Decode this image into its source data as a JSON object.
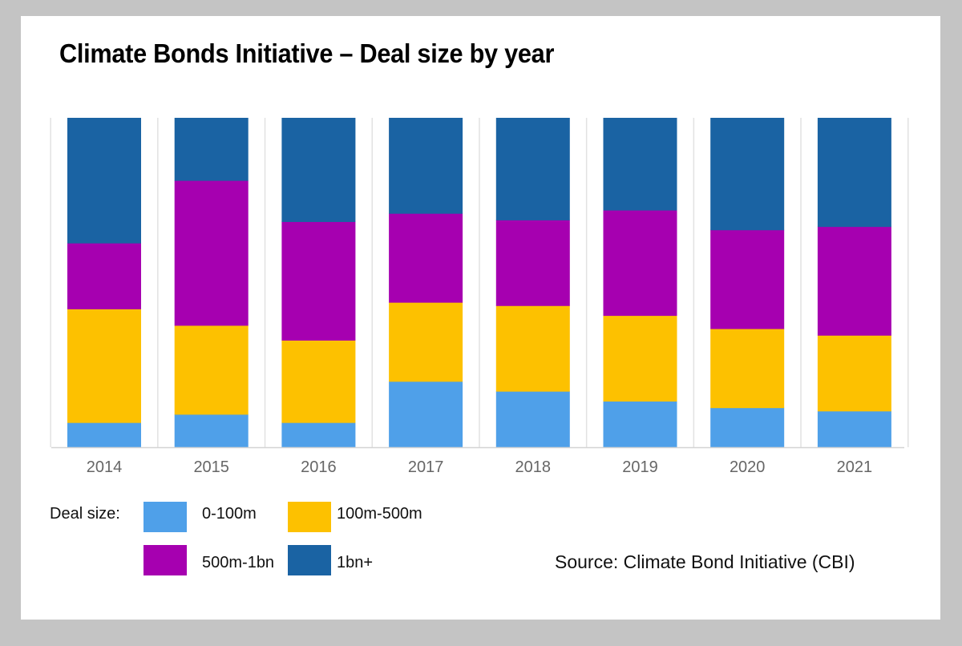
{
  "chart_data": {
    "type": "bar",
    "stacked": true,
    "normalized": true,
    "title": "Climate Bonds Initiative – Deal size by year",
    "categories": [
      "2014",
      "2015",
      "2016",
      "2017",
      "2018",
      "2019",
      "2020",
      "2021"
    ],
    "series": [
      {
        "name": "0-100m",
        "color": "#4fa0e9",
        "values": [
          7.5,
          10,
          7.5,
          20,
          17,
          14,
          12,
          11
        ]
      },
      {
        "name": "100m-500m",
        "color": "#fdc100",
        "values": [
          34.5,
          27,
          25,
          24,
          26,
          26,
          24,
          23
        ]
      },
      {
        "name": "500m-1bn",
        "color": "#a600b0",
        "values": [
          20,
          44,
          36,
          27,
          26,
          32,
          30,
          33
        ]
      },
      {
        "name": "1bn+",
        "color": "#1a63a3",
        "values": [
          38,
          19,
          31.5,
          29,
          31,
          28,
          34,
          33
        ]
      }
    ],
    "ylim": [
      0,
      100
    ],
    "xlabel": "",
    "ylabel": "",
    "grid": false
  },
  "legend": {
    "heading": "Deal size:"
  },
  "source": "Source: Climate Bond Initiative (CBI)"
}
